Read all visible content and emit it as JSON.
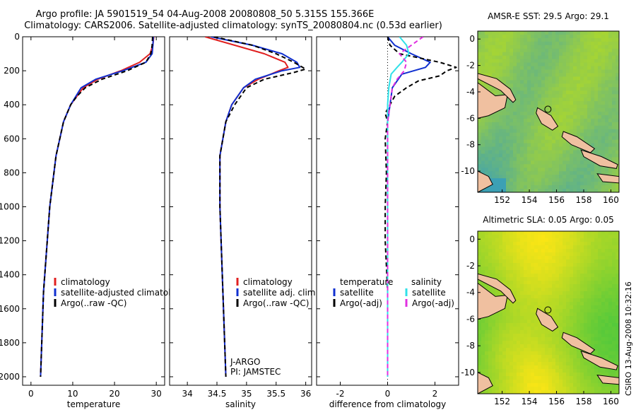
{
  "header": {
    "line1": "Argo profile: JA 5901519_54 04-Aug-2008 20080808_50 5.315S 155.366E",
    "line2": "Climatology: CARS2006. Satellite-adjusted climatology: synTS_20080804.nc (0.53d earlier)"
  },
  "side_label": "CSIRO 13-Aug-2008 10:32:16",
  "maps": [
    {
      "title": "AMSR-E SST: 29.5 Argo: 29.1",
      "xticks": [
        "152",
        "154",
        "156",
        "158",
        "160"
      ],
      "yticks": [
        "0",
        "-2",
        "-4",
        "-6",
        "-8",
        "-10"
      ],
      "palette": "sst"
    },
    {
      "title": "Altimetric SLA: 0.05 Argo: 0.05",
      "xticks": [
        "152",
        "154",
        "156",
        "158",
        "160"
      ],
      "yticks": [
        "0",
        "-2",
        "-4",
        "-6",
        "-8",
        "-10"
      ],
      "palette": "sla"
    }
  ],
  "colors": {
    "climatology": "#e02020",
    "satellite": "#1030d0",
    "argo": "#000000",
    "sal_satellite": "#30e0e8",
    "sal_argo": "#e030e0"
  },
  "chart_data": [
    {
      "type": "line",
      "xlabel": "temperature",
      "ylabel": "",
      "xlim": [
        -2,
        32
      ],
      "ylim": [
        2050,
        0
      ],
      "xticks": [
        0,
        10,
        20,
        30
      ],
      "yticks": [
        0,
        200,
        400,
        600,
        800,
        1000,
        1200,
        1400,
        1600,
        1800,
        2000
      ],
      "legend": [
        "climatology",
        "satellite-adjusted climatology",
        "Argo(..raw -QC)"
      ],
      "series": [
        {
          "name": "climatology",
          "style": "climatology",
          "depth": [
            0,
            50,
            100,
            150,
            200,
            250,
            300,
            400,
            500,
            700,
            1000,
            1500,
            2000
          ],
          "values": [
            29.4,
            29.2,
            28.5,
            26.0,
            21.5,
            16.0,
            12.5,
            9.5,
            7.8,
            6.0,
            4.5,
            3.0,
            2.3
          ]
        },
        {
          "name": "satellite-adjusted climatology",
          "style": "satellite",
          "depth": [
            0,
            50,
            100,
            150,
            200,
            250,
            300,
            400,
            500,
            700,
            1000,
            1500,
            2000
          ],
          "values": [
            29.3,
            29.2,
            29.0,
            27.5,
            22.0,
            15.5,
            12.0,
            9.5,
            7.8,
            6.0,
            4.5,
            3.0,
            2.3
          ]
        },
        {
          "name": "Argo(..raw -QC)",
          "style": "argo",
          "depth": [
            0,
            50,
            100,
            150,
            200,
            250,
            300,
            350,
            400,
            500,
            700,
            1000,
            1500,
            2000
          ],
          "values": [
            29.1,
            29.0,
            28.7,
            27.5,
            23.0,
            17.0,
            13.0,
            11.0,
            9.5,
            7.8,
            6.0,
            4.5,
            3.0,
            2.3
          ]
        }
      ]
    },
    {
      "type": "line",
      "xlabel": "salinity",
      "ylabel": "",
      "xlim": [
        33.7,
        36.1
      ],
      "ylim": [
        2050,
        0
      ],
      "xticks": [
        34,
        34.5,
        35,
        35.5,
        36
      ],
      "yticks": [
        0,
        200,
        400,
        600,
        800,
        1000,
        1200,
        1400,
        1600,
        1800,
        2000
      ],
      "legend": [
        "climatology",
        "satellite adj. clim.",
        "Argo(..raw -QC)"
      ],
      "annotations": [
        "J-ARGO",
        "PI: JAMSTEC"
      ],
      "series": [
        {
          "name": "climatology",
          "style": "climatology",
          "depth": [
            0,
            50,
            100,
            150,
            180,
            200,
            250,
            300,
            400,
            500,
            700,
            1000,
            1500,
            2000
          ],
          "values": [
            34.3,
            34.8,
            35.3,
            35.65,
            35.7,
            35.55,
            35.2,
            34.95,
            34.75,
            34.65,
            34.55,
            34.55,
            34.6,
            34.65
          ]
        },
        {
          "name": "satellite adj. clim.",
          "style": "satellite",
          "depth": [
            0,
            50,
            100,
            150,
            180,
            200,
            250,
            300,
            400,
            500,
            700,
            1000,
            1500,
            2000
          ],
          "values": [
            34.4,
            35.1,
            35.6,
            35.85,
            35.9,
            35.6,
            35.15,
            34.95,
            34.75,
            34.65,
            34.55,
            34.55,
            34.6,
            34.65
          ]
        },
        {
          "name": "Argo(..raw -QC)",
          "style": "argo",
          "depth": [
            0,
            50,
            100,
            150,
            190,
            210,
            250,
            300,
            400,
            500,
            700,
            1000,
            1500,
            2000
          ],
          "values": [
            34.45,
            35.1,
            35.5,
            35.8,
            36.0,
            35.8,
            35.3,
            35.0,
            34.8,
            34.65,
            34.55,
            34.55,
            34.6,
            34.65
          ]
        }
      ]
    },
    {
      "type": "line",
      "xlabel": "difference from climatology",
      "ylabel": "",
      "xlim": [
        -3,
        3
      ],
      "ylim": [
        2050,
        0
      ],
      "xticks": [
        -2,
        0,
        2
      ],
      "yticks": [
        0,
        200,
        400,
        600,
        800,
        1000,
        1200,
        1400,
        1600,
        1800,
        2000
      ],
      "legend_headers": [
        "temperature",
        "salinity"
      ],
      "legend": [
        "satellite",
        "Argo(-adj)",
        "satellite",
        "Argo(-adj)"
      ],
      "series": [
        {
          "name": "satellite",
          "group": "temperature",
          "style": "satellite",
          "depth": [
            0,
            50,
            100,
            150,
            180,
            220,
            300,
            400,
            500,
            700,
            1000,
            1500,
            2000
          ],
          "values": [
            0,
            0.3,
            1.0,
            1.8,
            1.6,
            0.6,
            0.2,
            0.1,
            0,
            0,
            0,
            0,
            0
          ]
        },
        {
          "name": "Argo(-adj)",
          "group": "temperature",
          "style": "argo",
          "depth": [
            0,
            50,
            100,
            150,
            180,
            200,
            230,
            260,
            300,
            350,
            400,
            450,
            500,
            600,
            800,
            1000,
            1200,
            1500,
            2000
          ],
          "values": [
            0,
            0.1,
            0.5,
            2.2,
            2.9,
            2.5,
            2.2,
            1.3,
            0.8,
            0.3,
            0.1,
            -0.1,
            0,
            -0.1,
            -0.05,
            -0.1,
            -0.1,
            0,
            0
          ]
        },
        {
          "name": "satellite",
          "group": "salinity",
          "style": "sal_satellite",
          "depth": [
            0,
            50,
            100,
            150,
            180,
            220,
            300,
            400,
            500,
            1000,
            2000
          ],
          "values": [
            0.5,
            0.8,
            0.9,
            0.6,
            0.4,
            0.15,
            0.05,
            0,
            0,
            0,
            0
          ]
        },
        {
          "name": "Argo(-adj)",
          "group": "salinity",
          "style": "sal_argo",
          "depth": [
            0,
            40,
            100,
            150,
            200,
            250,
            300,
            400,
            500,
            1000,
            2000
          ],
          "values": [
            1.5,
            1.1,
            0.5,
            0.8,
            0.7,
            0.4,
            0.2,
            0.1,
            0,
            0,
            0
          ]
        }
      ]
    }
  ]
}
